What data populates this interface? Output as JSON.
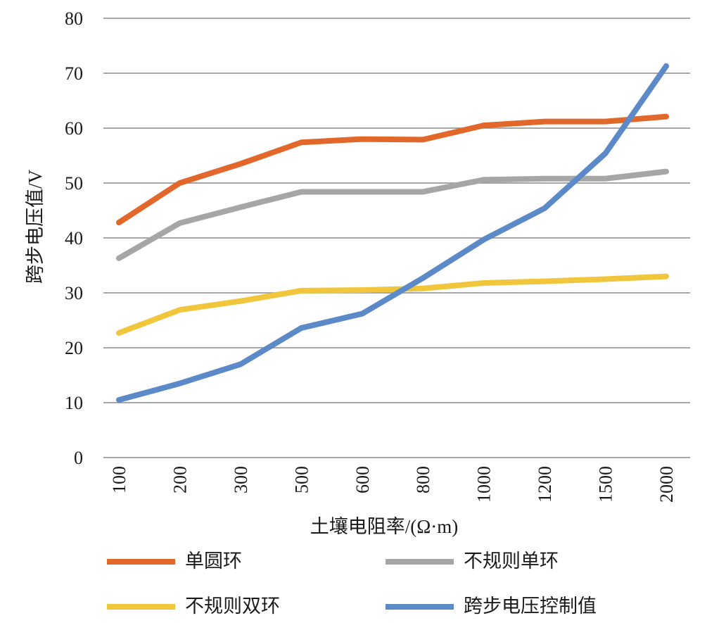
{
  "chart_data": {
    "type": "line",
    "xlabel": "土壤电阻率/(Ω·m)",
    "ylabel": "跨步电压值/V",
    "categories": [
      "100",
      "200",
      "300",
      "500",
      "600",
      "800",
      "1000",
      "1200",
      "1500",
      "2000"
    ],
    "yticks": [
      0,
      10,
      20,
      30,
      40,
      50,
      60,
      70,
      80
    ],
    "ylim": [
      0,
      80
    ],
    "grid": true,
    "legend_position": "bottom",
    "gridline_color": "#8a8a8a",
    "text_color": "#1a1a1a",
    "series": [
      {
        "name": "单圆环",
        "color": "#E2672B",
        "values": [
          42.8,
          50.0,
          53.5,
          57.4,
          58.0,
          57.9,
          60.5,
          61.2,
          61.2,
          62.1
        ]
      },
      {
        "name": "不规则单环",
        "color": "#A6A6A6",
        "values": [
          36.3,
          42.7,
          45.6,
          48.4,
          48.4,
          48.4,
          50.6,
          50.8,
          50.8,
          52.1
        ]
      },
      {
        "name": "不规则双环",
        "color": "#F2C63C",
        "values": [
          22.7,
          26.9,
          28.5,
          30.4,
          30.5,
          30.8,
          31.8,
          32.1,
          32.5,
          33.0
        ]
      },
      {
        "name": "跨步电压控制值",
        "color": "#5C8AC8",
        "values": [
          10.5,
          13.5,
          17.0,
          23.6,
          26.2,
          32.7,
          39.7,
          45.4,
          55.4,
          71.3
        ]
      }
    ]
  }
}
